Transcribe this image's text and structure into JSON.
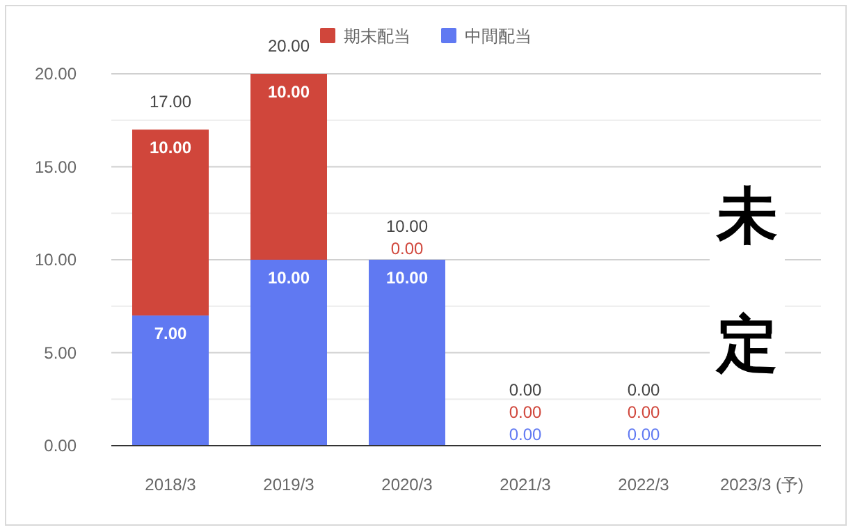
{
  "chart_data": {
    "type": "bar",
    "stacked": true,
    "categories": [
      "2018/3",
      "2019/3",
      "2020/3",
      "2021/3",
      "2022/3",
      "2023/3 (予)"
    ],
    "series": [
      {
        "name": "中間配当",
        "color": "#6079f2",
        "values": [
          7,
          10,
          10,
          0,
          0,
          0
        ],
        "value_labels": [
          "7.00",
          "10.00",
          "10.00",
          "0.00",
          "0.00",
          null
        ]
      },
      {
        "name": "期末配当",
        "color": "#d0463b",
        "values": [
          10,
          10,
          0,
          0,
          0,
          0
        ],
        "value_labels": [
          "10.00",
          "10.00",
          "0.00",
          "0.00",
          "0.00",
          null
        ]
      }
    ],
    "totals": [
      "17.00",
      "20.00",
      "10.00",
      "0.00",
      "0.00",
      null
    ],
    "ylim": [
      0,
      20
    ],
    "yticks": [
      {
        "value": 0,
        "label": "0.00"
      },
      {
        "value": 2.5,
        "label": null
      },
      {
        "value": 5,
        "label": "5.00"
      },
      {
        "value": 7.5,
        "label": null
      },
      {
        "value": 10,
        "label": "10.00"
      },
      {
        "value": 12.5,
        "label": null
      },
      {
        "value": 15,
        "label": "15.00"
      },
      {
        "value": 17.5,
        "label": null
      },
      {
        "value": 20,
        "label": "20.00"
      }
    ],
    "grid": "y",
    "legend": "top",
    "annotations": [
      "未定"
    ]
  }
}
